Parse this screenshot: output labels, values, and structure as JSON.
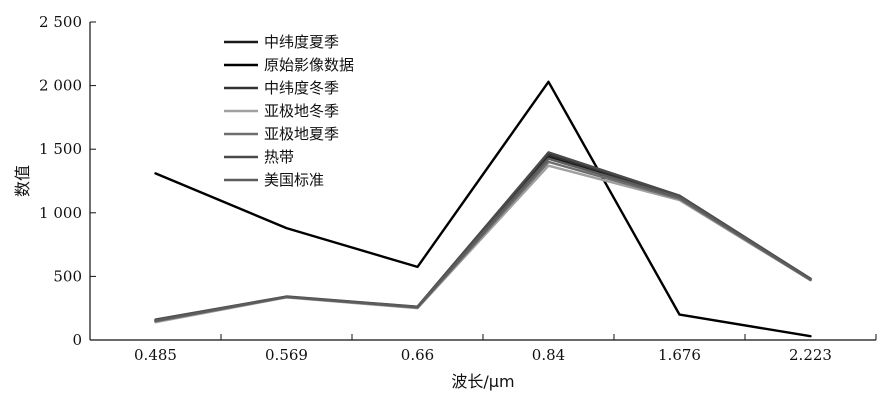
{
  "chart_data": {
    "type": "line",
    "title": "",
    "xlabel": "波长/μm",
    "ylabel": "数值",
    "categories": [
      "0.485",
      "0.569",
      "0.66",
      "0.84",
      "1.676",
      "2.223"
    ],
    "yticks": [
      "0",
      "500",
      "1 000",
      "1 500",
      "2 000",
      "2 500"
    ],
    "ytick_values": [
      0,
      500,
      1000,
      1500,
      2000,
      2500
    ],
    "ylim": [
      0,
      2500
    ],
    "grid": false,
    "legend_position": "top-left",
    "series": [
      {
        "name": "中纬度夏季",
        "color": "#1a1a1a",
        "values": [
          150,
          340,
          255,
          1440,
          1120,
          475
        ]
      },
      {
        "name": "原始影像数据",
        "color": "#000000",
        "values": [
          1310,
          880,
          575,
          2030,
          200,
          30
        ]
      },
      {
        "name": "中纬度冬季",
        "color": "#333333",
        "values": [
          155,
          340,
          260,
          1460,
          1130,
          480
        ]
      },
      {
        "name": "亚极地冬季",
        "color": "#a0a0a0",
        "values": [
          140,
          335,
          250,
          1370,
          1100,
          470
        ]
      },
      {
        "name": "亚极地夏季",
        "color": "#6e6e6e",
        "values": [
          148,
          338,
          255,
          1400,
          1110,
          472
        ]
      },
      {
        "name": "热带",
        "color": "#4a4a4a",
        "values": [
          160,
          342,
          262,
          1475,
          1135,
          482
        ]
      },
      {
        "name": "美国标准",
        "color": "#5c5c5c",
        "values": [
          152,
          339,
          258,
          1425,
          1120,
          476
        ]
      }
    ]
  }
}
